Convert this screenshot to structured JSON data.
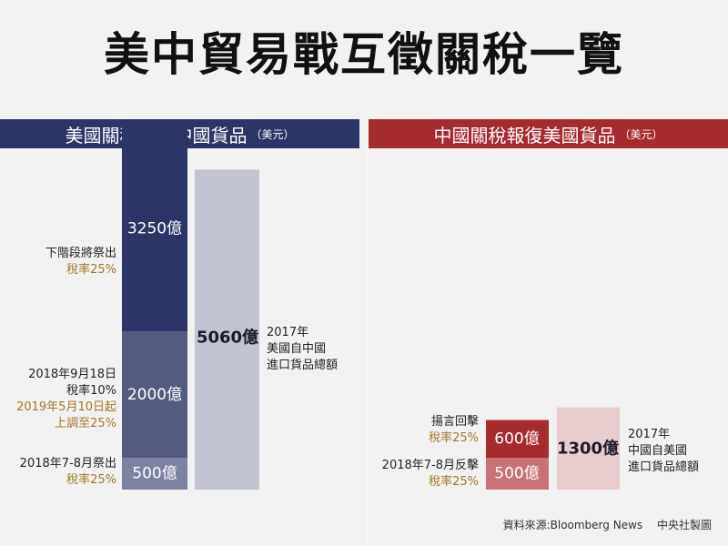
{
  "title": "美中貿易戰互徵關稅一覽",
  "left_header": {
    "text": "美國關稅打擊中國貨品",
    "unit": "（美元）"
  },
  "right_header": {
    "text": "中國關稅報復美國貨品",
    "unit": "（美元）"
  },
  "colors": {
    "us_dark": "#2c3565",
    "us_mid": "#545b7d",
    "us_light": "#7d82a0",
    "us_total": "#c2c4d2",
    "cn_dark": "#a62b2f",
    "cn_mid": "#c77276",
    "cn_total": "#e8cdce",
    "gold": "#a0772b"
  },
  "annotations": {
    "next_stage": "下階段將祭出",
    "next_rate": "稅率25%",
    "sep_date": "2018年9月18日",
    "sep_rate": "稅率10%",
    "may_raise_1": "2019年5月10日起",
    "may_raise_2": "上調至25%",
    "jul_aug": "2018年7-8月祭出",
    "jul_aug_rate": "稅率25%",
    "us_total_year": "2017年",
    "us_total_1": "美國自中國",
    "us_total_2": "進口貨品總額",
    "cn_threat": "揚言回擊",
    "cn_threat_rate": "稅率25%",
    "cn_jul_aug": "2018年7-8月反擊",
    "cn_jul_aug_rate": "稅率25%",
    "cn_total_year": "2017年",
    "cn_total_1": "中國自美國",
    "cn_total_2": "進口貨品總額"
  },
  "source": {
    "text": "資料來源:Bloomberg News",
    "credit": "中央社製圖"
  },
  "chart_data": {
    "type": "bar",
    "unit": "億",
    "series": [
      {
        "segments": [
          {
            "label": "500億",
            "value": 500
          },
          {
            "label": "2000億",
            "value": 2000
          },
          {
            "label": "3250億",
            "value": 3250
          }
        ],
        "total": {
          "label": "5060億",
          "value": 5060
        }
      },
      {
        "segments": [
          {
            "label": "500億",
            "value": 500
          },
          {
            "label": "600億",
            "value": 600
          }
        ],
        "total": {
          "label": "1300億",
          "value": 1300
        }
      }
    ]
  }
}
